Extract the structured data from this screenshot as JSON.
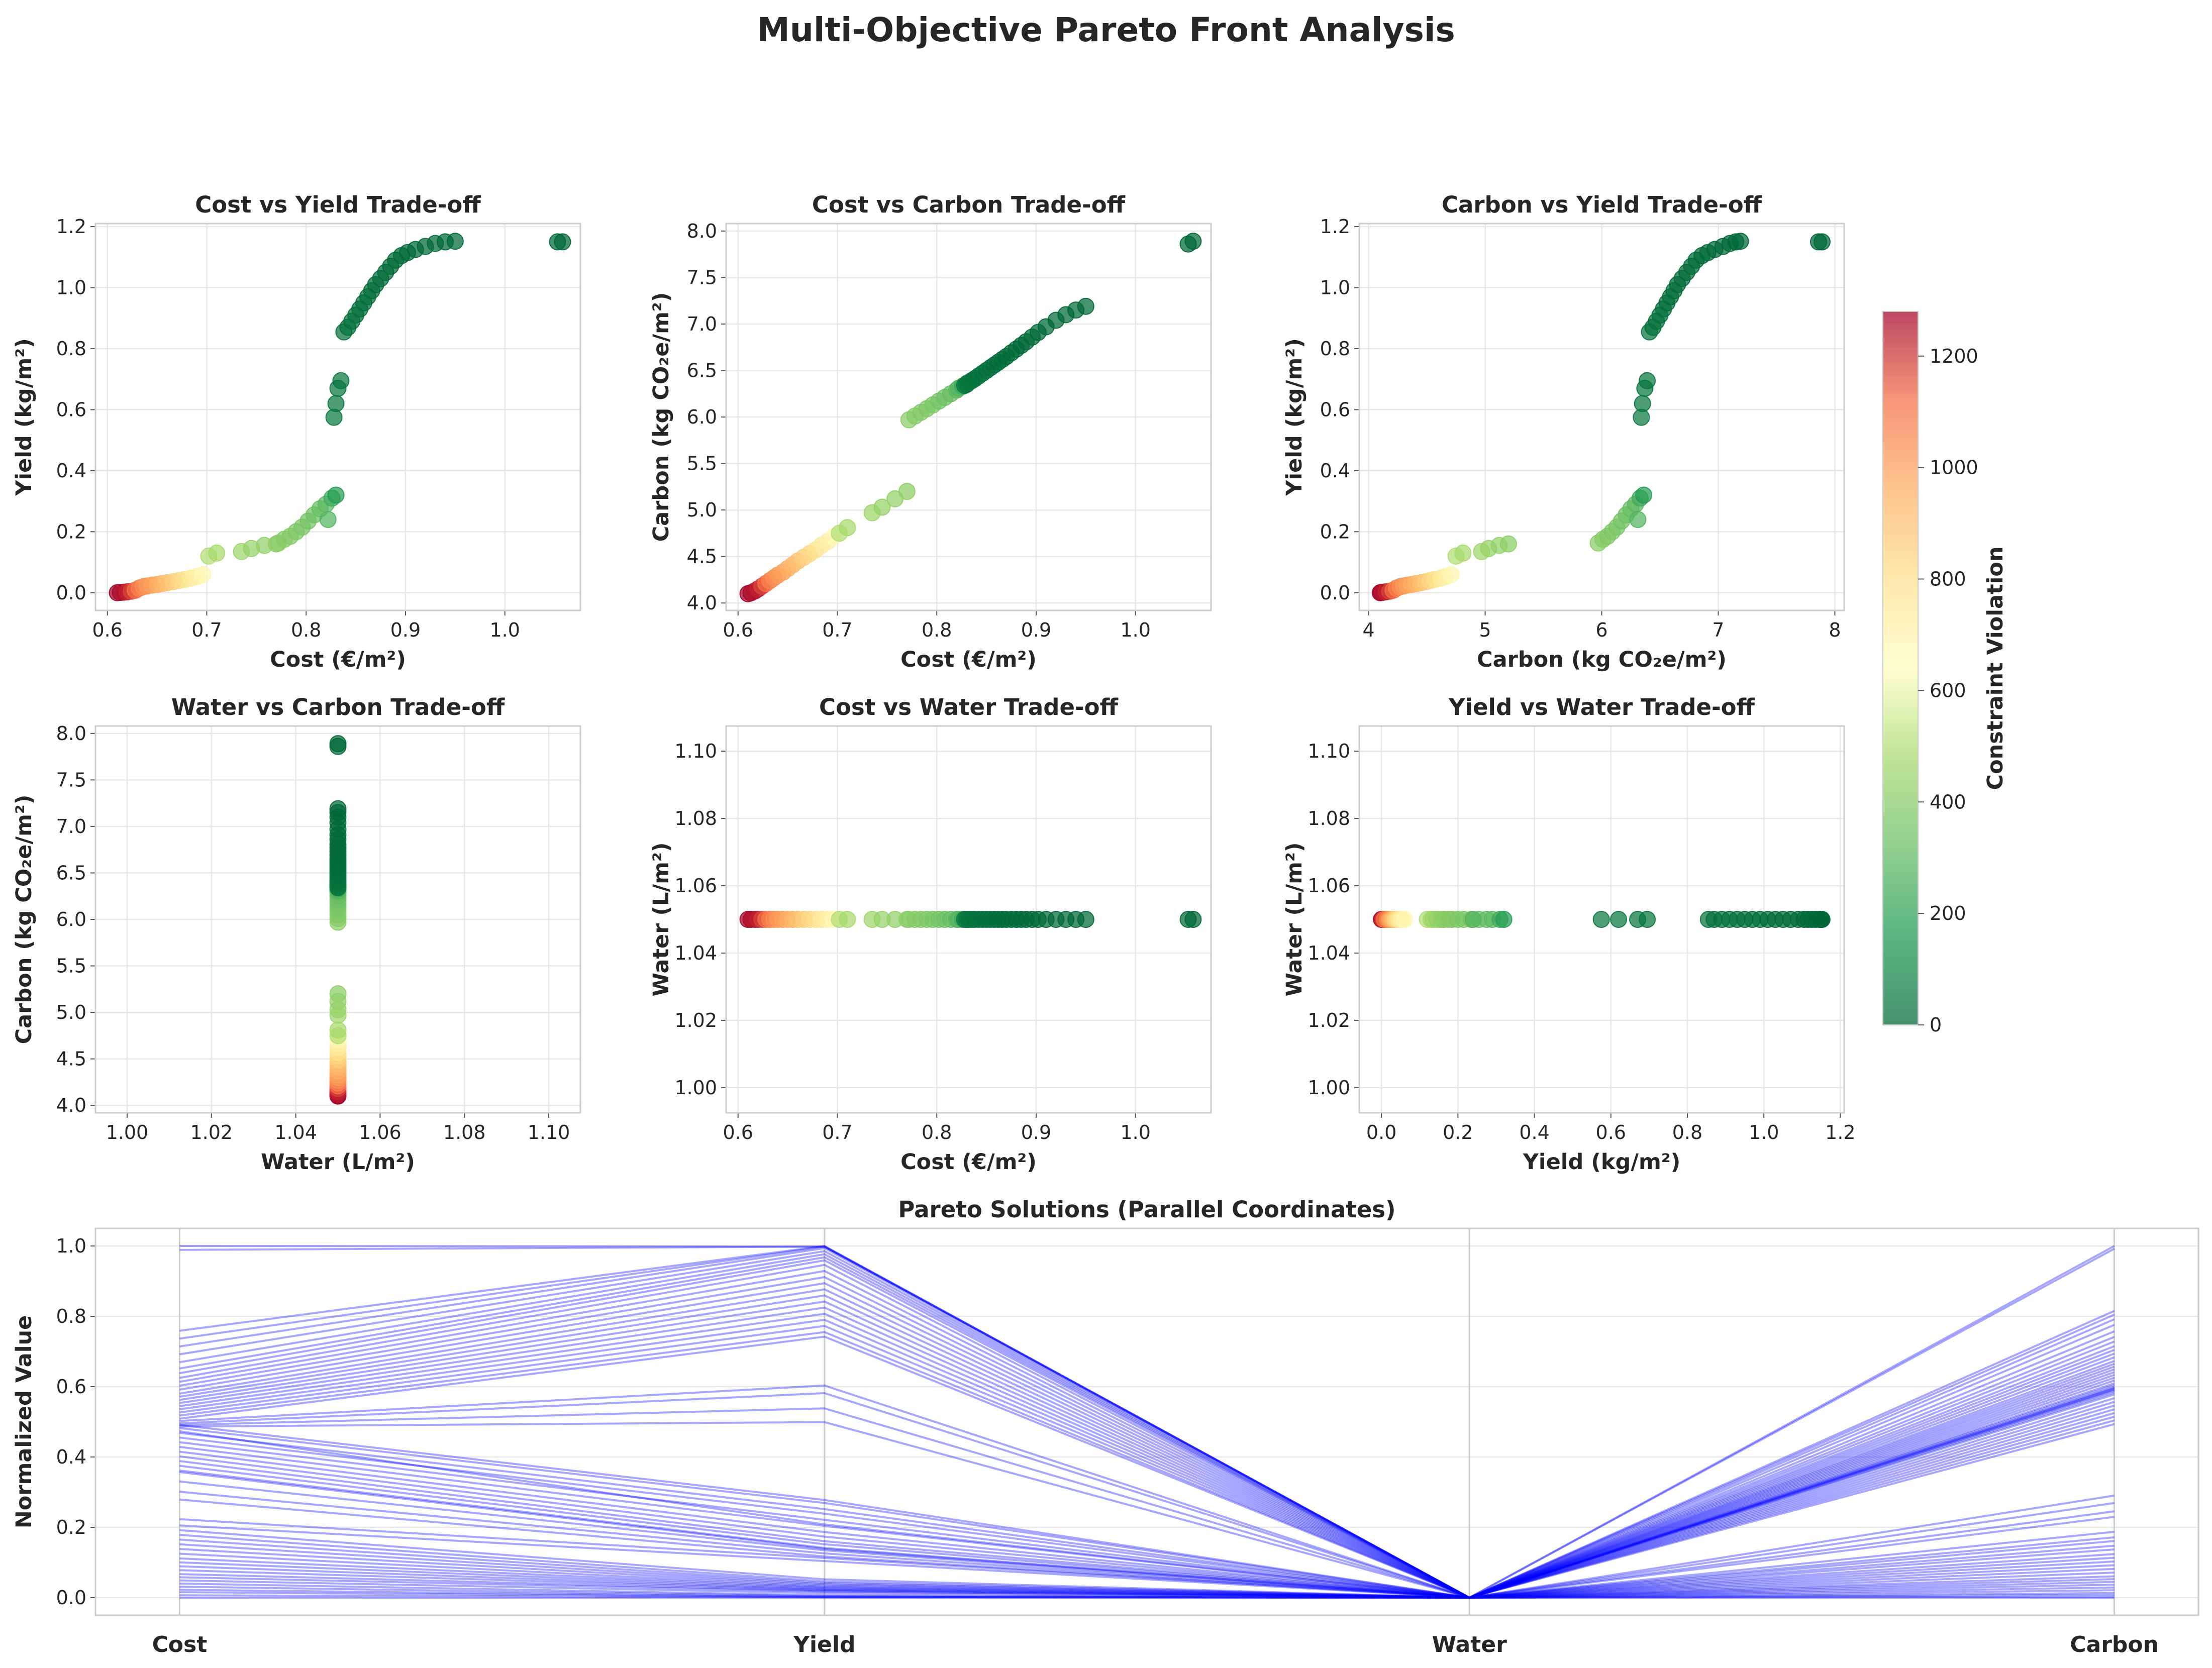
{
  "figure": {
    "title": "Multi-Objective Pareto Front Analysis"
  },
  "colors": {
    "colormap": "RdYlGn_r",
    "parallel_line": "#0000ff",
    "grid": "#e8e8e8"
  },
  "colorbar": {
    "label": "Constraint Violation",
    "min": 0,
    "max": 1280,
    "ticks": [
      0,
      200,
      400,
      600,
      800,
      1000,
      1200
    ]
  },
  "chart_data": [
    {
      "id": "cost_yield",
      "type": "scatter",
      "title": "Cost vs Yield Trade-off",
      "xlabel": "Cost (€/m²)",
      "ylabel": "Yield (kg/m²)",
      "xlim": [
        0.588,
        1.076
      ],
      "ylim": [
        -0.058,
        1.21
      ],
      "xticks": [
        0.6,
        0.7,
        0.8,
        0.9,
        1.0
      ],
      "yticks": [
        0.0,
        0.2,
        0.4,
        0.6,
        0.8,
        1.0,
        1.2
      ],
      "xtick_labels": [
        "0.6",
        "0.7",
        "0.8",
        "0.9",
        "1.0"
      ],
      "ytick_labels": [
        "0.0",
        "0.2",
        "0.4",
        "0.6",
        "0.8",
        "1.0",
        "1.2"
      ],
      "x_field": "cost",
      "y_field": "yield",
      "grid": true
    },
    {
      "id": "cost_carbon",
      "type": "scatter",
      "title": "Cost vs Carbon Trade-off",
      "xlabel": "Cost (€/m²)",
      "ylabel": "Carbon (kg CO₂e/m²)",
      "xlim": [
        0.588,
        1.076
      ],
      "ylim": [
        3.92,
        8.08
      ],
      "xticks": [
        0.6,
        0.7,
        0.8,
        0.9,
        1.0
      ],
      "yticks": [
        4.0,
        4.5,
        5.0,
        5.5,
        6.0,
        6.5,
        7.0,
        7.5,
        8.0
      ],
      "xtick_labels": [
        "0.6",
        "0.7",
        "0.8",
        "0.9",
        "1.0"
      ],
      "ytick_labels": [
        "4.0",
        "4.5",
        "5.0",
        "5.5",
        "6.0",
        "6.5",
        "7.0",
        "7.5",
        "8.0"
      ],
      "x_field": "cost",
      "y_field": "carbon",
      "grid": true
    },
    {
      "id": "carbon_yield",
      "type": "scatter",
      "title": "Carbon vs Yield Trade-off",
      "xlabel": "Carbon (kg CO₂e/m²)",
      "ylabel": "Yield (kg/m²)",
      "xlim": [
        3.92,
        8.08
      ],
      "ylim": [
        -0.058,
        1.21
      ],
      "xticks": [
        4,
        5,
        6,
        7,
        8
      ],
      "yticks": [
        0.0,
        0.2,
        0.4,
        0.6,
        0.8,
        1.0,
        1.2
      ],
      "xtick_labels": [
        "4",
        "5",
        "6",
        "7",
        "8"
      ],
      "ytick_labels": [
        "0.0",
        "0.2",
        "0.4",
        "0.6",
        "0.8",
        "1.0",
        "1.2"
      ],
      "x_field": "carbon",
      "y_field": "yield",
      "grid": true
    },
    {
      "id": "water_carbon",
      "type": "scatter",
      "title": "Water vs Carbon Trade-off",
      "xlabel": "Water (L/m²)",
      "ylabel": "Carbon (kg CO₂e/m²)",
      "xlim": [
        0.9925,
        1.1075
      ],
      "ylim": [
        3.92,
        8.08
      ],
      "xticks": [
        1.0,
        1.02,
        1.04,
        1.06,
        1.08,
        1.1
      ],
      "yticks": [
        4.0,
        4.5,
        5.0,
        5.5,
        6.0,
        6.5,
        7.0,
        7.5,
        8.0
      ],
      "xtick_labels": [
        "1.00",
        "1.02",
        "1.04",
        "1.06",
        "1.08",
        "1.10"
      ],
      "ytick_labels": [
        "4.0",
        "4.5",
        "5.0",
        "5.5",
        "6.0",
        "6.5",
        "7.0",
        "7.5",
        "8.0"
      ],
      "x_field": "water",
      "y_field": "carbon",
      "grid": true
    },
    {
      "id": "cost_water",
      "type": "scatter",
      "title": "Cost vs Water Trade-off",
      "xlabel": "Cost (€/m²)",
      "ylabel": "Water (L/m²)",
      "xlim": [
        0.588,
        1.076
      ],
      "ylim": [
        0.9925,
        1.1075
      ],
      "xticks": [
        0.6,
        0.7,
        0.8,
        0.9,
        1.0
      ],
      "yticks": [
        1.0,
        1.02,
        1.04,
        1.06,
        1.08,
        1.1
      ],
      "xtick_labels": [
        "0.6",
        "0.7",
        "0.8",
        "0.9",
        "1.0"
      ],
      "ytick_labels": [
        "1.00",
        "1.02",
        "1.04",
        "1.06",
        "1.08",
        "1.10"
      ],
      "x_field": "cost",
      "y_field": "water",
      "grid": true
    },
    {
      "id": "yield_water",
      "type": "scatter",
      "title": "Yield vs Water Trade-off",
      "xlabel": "Yield (kg/m²)",
      "ylabel": "Water (L/m²)",
      "xlim": [
        -0.058,
        1.21
      ],
      "ylim": [
        0.9925,
        1.1075
      ],
      "xticks": [
        0.0,
        0.2,
        0.4,
        0.6,
        0.8,
        1.0,
        1.2
      ],
      "yticks": [
        1.0,
        1.02,
        1.04,
        1.06,
        1.08,
        1.1
      ],
      "xtick_labels": [
        "0.0",
        "0.2",
        "0.4",
        "0.6",
        "0.8",
        "1.0",
        "1.2"
      ],
      "ytick_labels": [
        "1.00",
        "1.02",
        "1.04",
        "1.06",
        "1.08",
        "1.10"
      ],
      "x_field": "yield",
      "y_field": "water",
      "grid": true
    },
    {
      "id": "parallel",
      "type": "line",
      "title": "Pareto Solutions (Parallel Coordinates)",
      "xlabel": "",
      "ylabel": "Normalized Value",
      "categories": [
        "Cost",
        "Yield",
        "Water",
        "Carbon"
      ],
      "ylim": [
        -0.05,
        1.05
      ],
      "yticks": [
        0.0,
        0.2,
        0.4,
        0.6,
        0.8,
        1.0
      ],
      "ytick_labels": [
        "0.0",
        "0.2",
        "0.4",
        "0.6",
        "0.8",
        "1.0"
      ],
      "grid": true
    }
  ],
  "solutions": [
    {
      "cost": 0.61,
      "yield": 0.0,
      "water": 1.05,
      "carbon": 4.1,
      "violation": 1280
    },
    {
      "cost": 0.613,
      "yield": 0.001,
      "water": 1.05,
      "carbon": 4.11,
      "violation": 1270
    },
    {
      "cost": 0.617,
      "yield": 0.002,
      "water": 1.05,
      "carbon": 4.13,
      "violation": 1250
    },
    {
      "cost": 0.62,
      "yield": 0.003,
      "water": 1.05,
      "carbon": 4.15,
      "violation": 1230
    },
    {
      "cost": 0.624,
      "yield": 0.005,
      "water": 1.05,
      "carbon": 4.18,
      "violation": 1180
    },
    {
      "cost": 0.628,
      "yield": 0.008,
      "water": 1.05,
      "carbon": 4.21,
      "violation": 1120
    },
    {
      "cost": 0.632,
      "yield": 0.015,
      "water": 1.05,
      "carbon": 4.24,
      "violation": 1070
    },
    {
      "cost": 0.636,
      "yield": 0.02,
      "water": 1.05,
      "carbon": 4.27,
      "violation": 1040
    },
    {
      "cost": 0.64,
      "yield": 0.022,
      "water": 1.05,
      "carbon": 4.3,
      "violation": 1010
    },
    {
      "cost": 0.645,
      "yield": 0.025,
      "water": 1.05,
      "carbon": 4.33,
      "violation": 990
    },
    {
      "cost": 0.65,
      "yield": 0.027,
      "water": 1.05,
      "carbon": 4.37,
      "violation": 960
    },
    {
      "cost": 0.655,
      "yield": 0.03,
      "water": 1.05,
      "carbon": 4.41,
      "violation": 930
    },
    {
      "cost": 0.66,
      "yield": 0.033,
      "water": 1.05,
      "carbon": 4.45,
      "violation": 900
    },
    {
      "cost": 0.666,
      "yield": 0.036,
      "water": 1.05,
      "carbon": 4.49,
      "violation": 860
    },
    {
      "cost": 0.672,
      "yield": 0.04,
      "water": 1.05,
      "carbon": 4.53,
      "violation": 830
    },
    {
      "cost": 0.678,
      "yield": 0.044,
      "water": 1.05,
      "carbon": 4.57,
      "violation": 790
    },
    {
      "cost": 0.684,
      "yield": 0.048,
      "water": 1.05,
      "carbon": 4.62,
      "violation": 750
    },
    {
      "cost": 0.69,
      "yield": 0.053,
      "water": 1.05,
      "carbon": 4.66,
      "violation": 720
    },
    {
      "cost": 0.696,
      "yield": 0.06,
      "water": 1.05,
      "carbon": 4.71,
      "violation": 680
    },
    {
      "cost": 0.702,
      "yield": 0.12,
      "water": 1.05,
      "carbon": 4.75,
      "violation": 500
    },
    {
      "cost": 0.71,
      "yield": 0.13,
      "water": 1.05,
      "carbon": 4.81,
      "violation": 480
    },
    {
      "cost": 0.735,
      "yield": 0.135,
      "water": 1.05,
      "carbon": 4.97,
      "violation": 460
    },
    {
      "cost": 0.745,
      "yield": 0.145,
      "water": 1.05,
      "carbon": 5.03,
      "violation": 440
    },
    {
      "cost": 0.758,
      "yield": 0.155,
      "water": 1.05,
      "carbon": 5.12,
      "violation": 430
    },
    {
      "cost": 0.77,
      "yield": 0.16,
      "water": 1.05,
      "carbon": 5.2,
      "violation": 420
    },
    {
      "cost": 0.772,
      "yield": 0.163,
      "water": 1.05,
      "carbon": 5.97,
      "violation": 410
    },
    {
      "cost": 0.778,
      "yield": 0.175,
      "water": 1.05,
      "carbon": 6.01,
      "violation": 400
    },
    {
      "cost": 0.784,
      "yield": 0.185,
      "water": 1.05,
      "carbon": 6.05,
      "violation": 390
    },
    {
      "cost": 0.79,
      "yield": 0.2,
      "water": 1.05,
      "carbon": 6.09,
      "violation": 380
    },
    {
      "cost": 0.796,
      "yield": 0.215,
      "water": 1.05,
      "carbon": 6.13,
      "violation": 370
    },
    {
      "cost": 0.802,
      "yield": 0.235,
      "water": 1.05,
      "carbon": 6.17,
      "violation": 355
    },
    {
      "cost": 0.808,
      "yield": 0.255,
      "water": 1.05,
      "carbon": 6.21,
      "violation": 340
    },
    {
      "cost": 0.814,
      "yield": 0.275,
      "water": 1.05,
      "carbon": 6.25,
      "violation": 320
    },
    {
      "cost": 0.82,
      "yield": 0.29,
      "water": 1.05,
      "carbon": 6.29,
      "violation": 300
    },
    {
      "cost": 0.822,
      "yield": 0.24,
      "water": 1.05,
      "carbon": 6.31,
      "violation": 280
    },
    {
      "cost": 0.826,
      "yield": 0.31,
      "water": 1.05,
      "carbon": 6.33,
      "violation": 240
    },
    {
      "cost": 0.83,
      "yield": 0.32,
      "water": 1.05,
      "carbon": 6.36,
      "violation": 180
    },
    {
      "cost": 0.828,
      "yield": 0.575,
      "water": 1.05,
      "carbon": 6.34,
      "violation": 60
    },
    {
      "cost": 0.83,
      "yield": 0.62,
      "water": 1.05,
      "carbon": 6.35,
      "violation": 55
    },
    {
      "cost": 0.832,
      "yield": 0.67,
      "water": 1.05,
      "carbon": 6.37,
      "violation": 50
    },
    {
      "cost": 0.835,
      "yield": 0.695,
      "water": 1.05,
      "carbon": 6.39,
      "violation": 45
    },
    {
      "cost": 0.838,
      "yield": 0.855,
      "water": 1.05,
      "carbon": 6.41,
      "violation": 35
    },
    {
      "cost": 0.842,
      "yield": 0.87,
      "water": 1.05,
      "carbon": 6.44,
      "violation": 30
    },
    {
      "cost": 0.846,
      "yield": 0.89,
      "water": 1.05,
      "carbon": 6.47,
      "violation": 28
    },
    {
      "cost": 0.85,
      "yield": 0.91,
      "water": 1.05,
      "carbon": 6.5,
      "violation": 25
    },
    {
      "cost": 0.854,
      "yield": 0.93,
      "water": 1.05,
      "carbon": 6.53,
      "violation": 22
    },
    {
      "cost": 0.858,
      "yield": 0.95,
      "water": 1.05,
      "carbon": 6.56,
      "violation": 20
    },
    {
      "cost": 0.862,
      "yield": 0.97,
      "water": 1.05,
      "carbon": 6.59,
      "violation": 18
    },
    {
      "cost": 0.866,
      "yield": 0.99,
      "water": 1.05,
      "carbon": 6.62,
      "violation": 15
    },
    {
      "cost": 0.87,
      "yield": 1.01,
      "water": 1.05,
      "carbon": 6.65,
      "violation": 12
    },
    {
      "cost": 0.875,
      "yield": 1.03,
      "water": 1.05,
      "carbon": 6.69,
      "violation": 10
    },
    {
      "cost": 0.88,
      "yield": 1.05,
      "water": 1.05,
      "carbon": 6.73,
      "violation": 8
    },
    {
      "cost": 0.885,
      "yield": 1.07,
      "water": 1.05,
      "carbon": 6.77,
      "violation": 6
    },
    {
      "cost": 0.89,
      "yield": 1.09,
      "water": 1.05,
      "carbon": 6.81,
      "violation": 5
    },
    {
      "cost": 0.896,
      "yield": 1.105,
      "water": 1.05,
      "carbon": 6.86,
      "violation": 4
    },
    {
      "cost": 0.902,
      "yield": 1.115,
      "water": 1.05,
      "carbon": 6.91,
      "violation": 3
    },
    {
      "cost": 0.91,
      "yield": 1.125,
      "water": 1.05,
      "carbon": 6.97,
      "violation": 2
    },
    {
      "cost": 0.92,
      "yield": 1.135,
      "water": 1.05,
      "carbon": 7.04,
      "violation": 1
    },
    {
      "cost": 0.93,
      "yield": 1.145,
      "water": 1.05,
      "carbon": 7.1,
      "violation": 1
    },
    {
      "cost": 0.94,
      "yield": 1.15,
      "water": 1.05,
      "carbon": 7.15,
      "violation": 0
    },
    {
      "cost": 0.95,
      "yield": 1.152,
      "water": 1.05,
      "carbon": 7.19,
      "violation": 0
    },
    {
      "cost": 1.053,
      "yield": 1.15,
      "water": 1.05,
      "carbon": 7.86,
      "violation": 0
    },
    {
      "cost": 1.058,
      "yield": 1.15,
      "water": 1.05,
      "carbon": 7.89,
      "violation": 0
    }
  ]
}
